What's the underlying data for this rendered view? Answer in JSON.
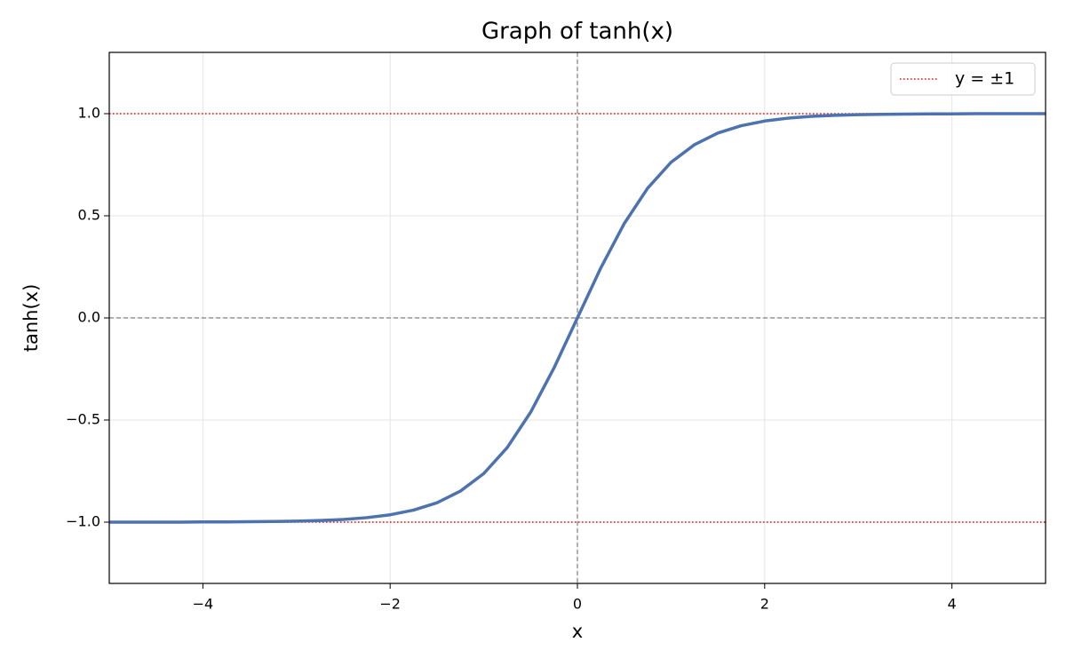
{
  "chart_data": {
    "type": "line",
    "title": "Graph of tanh(x)",
    "x_label": "x",
    "y_label": "tanh(x)",
    "x": [
      -5,
      -4.75,
      -4.5,
      -4.25,
      -4,
      -3.75,
      -3.5,
      -3.25,
      -3,
      -2.75,
      -2.5,
      -2.25,
      -2,
      -1.75,
      -1.5,
      -1.25,
      -1,
      -0.75,
      -0.5,
      -0.25,
      0,
      0.25,
      0.5,
      0.75,
      1,
      1.25,
      1.5,
      1.75,
      2,
      2.25,
      2.5,
      2.75,
      3,
      3.25,
      3.5,
      3.75,
      4,
      4.25,
      4.5,
      4.75,
      5
    ],
    "series": [
      {
        "color": "#4c72b0",
        "values": [
          -1.0,
          -1.0,
          -1.0,
          -1.0,
          -0.999,
          -0.999,
          -0.998,
          -0.997,
          -0.995,
          -0.992,
          -0.987,
          -0.978,
          -0.964,
          -0.941,
          -0.905,
          -0.848,
          -0.762,
          -0.635,
          -0.462,
          -0.245,
          0,
          0.245,
          0.462,
          0.635,
          0.762,
          0.848,
          0.905,
          0.941,
          0.964,
          0.978,
          0.987,
          0.992,
          0.995,
          0.997,
          0.998,
          0.999,
          0.999,
          1.0,
          1.0,
          1.0,
          1.0
        ]
      }
    ],
    "reference_lines": {
      "name": "y = ±1",
      "color": "red",
      "values": [
        1,
        -1
      ]
    },
    "zero_lines": true,
    "xlim": [
      -5,
      5
    ],
    "ylim": [
      -1.3,
      1.3
    ],
    "xticks": [
      {
        "value": -4,
        "label": "−4"
      },
      {
        "value": -2,
        "label": "−2"
      },
      0,
      2,
      4
    ],
    "yticks": [
      {
        "value": -1,
        "label": "−1.0"
      },
      {
        "value": -0.5,
        "label": "−0.5"
      },
      {
        "value": 0,
        "label": "0.0"
      },
      0.5,
      {
        "value": 1,
        "label": "1.0"
      }
    ],
    "grid": true,
    "legend_position": "upper-right"
  }
}
